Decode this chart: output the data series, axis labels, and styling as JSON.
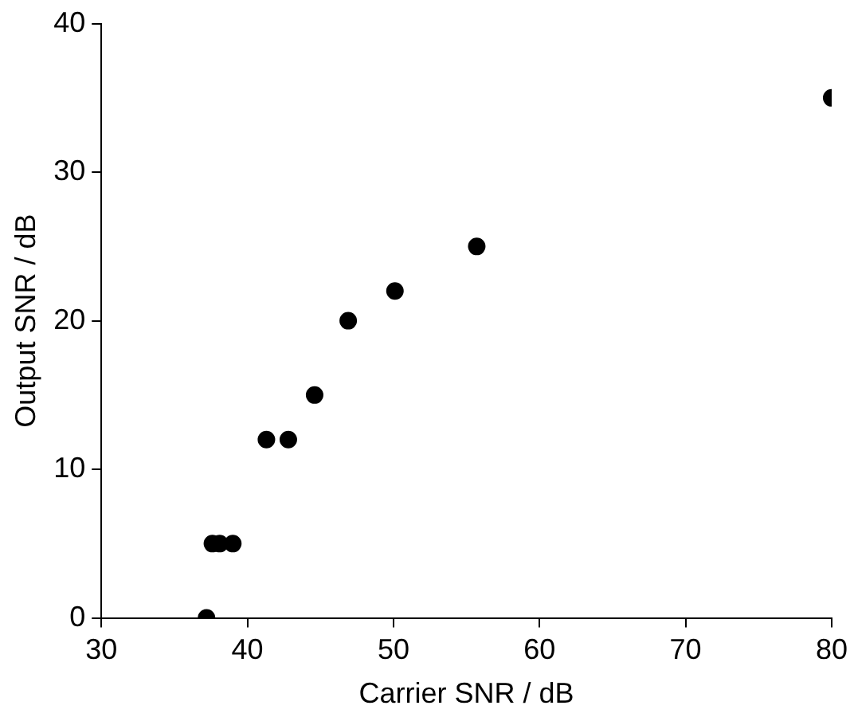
{
  "chart_data": {
    "type": "scatter",
    "xlabel": "Carrier SNR / dB",
    "ylabel": "Output SNR / dB",
    "x": [
      37.2,
      37.6,
      38.1,
      39.0,
      41.3,
      42.8,
      44.6,
      46.9,
      50.1,
      55.7,
      80
    ],
    "series": [
      {
        "color": "#000000",
        "values": [
          0,
          5,
          5,
          5,
          12,
          12,
          15,
          20,
          22,
          25,
          35
        ]
      }
    ],
    "xlim": [
      30,
      80
    ],
    "xticks": [
      30,
      40,
      50,
      60,
      70,
      80
    ],
    "ylim": [
      0,
      40
    ],
    "yticks": [
      0,
      10,
      20,
      30,
      40
    ],
    "grid": false,
    "legend": false,
    "marker": "circle"
  }
}
